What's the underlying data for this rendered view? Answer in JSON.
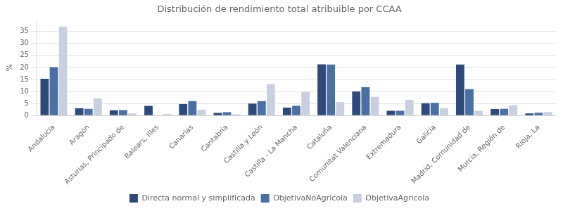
{
  "chart_data": {
    "type": "bar",
    "title": "Distribución de rendimiento total atribuible por CCAA",
    "categories": [
      "Andalucía",
      "Aragón",
      "Asturias, Principado de",
      "Balears, Illes",
      "Canarias",
      "Cantabria",
      "Castilla y León",
      "Castilla - La Mancha",
      "Cataluña",
      "Comunitat Valenciana",
      "Extremadura",
      "Galicia",
      "Madrid, Comunidad de",
      "Murcia, Región de",
      "Rioja, La"
    ],
    "series": [
      {
        "name": "Directa normal y simplificada",
        "color": "#2E4A7A",
        "values": [
          15.3,
          3.0,
          2.2,
          4.0,
          4.8,
          1.1,
          5.0,
          3.3,
          21.3,
          10.0,
          2.0,
          5.1,
          21.2,
          2.7,
          0.9
        ]
      },
      {
        "name": "ObjetivaNoAgricola",
        "color": "#4A6FA5",
        "values": [
          20.1,
          2.8,
          2.3,
          0.0,
          6.0,
          1.4,
          6.0,
          4.0,
          21.2,
          11.8,
          2.0,
          5.3,
          11.0,
          2.8,
          1.2
        ]
      },
      {
        "name": "ObjetivaAgricola",
        "color": "#C8D0E0",
        "values": [
          37.0,
          7.2,
          0.9,
          0.7,
          2.4,
          0.6,
          13.0,
          9.8,
          5.6,
          7.8,
          6.5,
          3.1,
          2.0,
          4.3,
          1.5
        ]
      }
    ],
    "ylabel": "%",
    "ylim": [
      0,
      40
    ],
    "yticks": [
      0,
      5,
      10,
      15,
      20,
      25,
      30,
      35
    ],
    "grid": true,
    "legend": "bottom"
  }
}
